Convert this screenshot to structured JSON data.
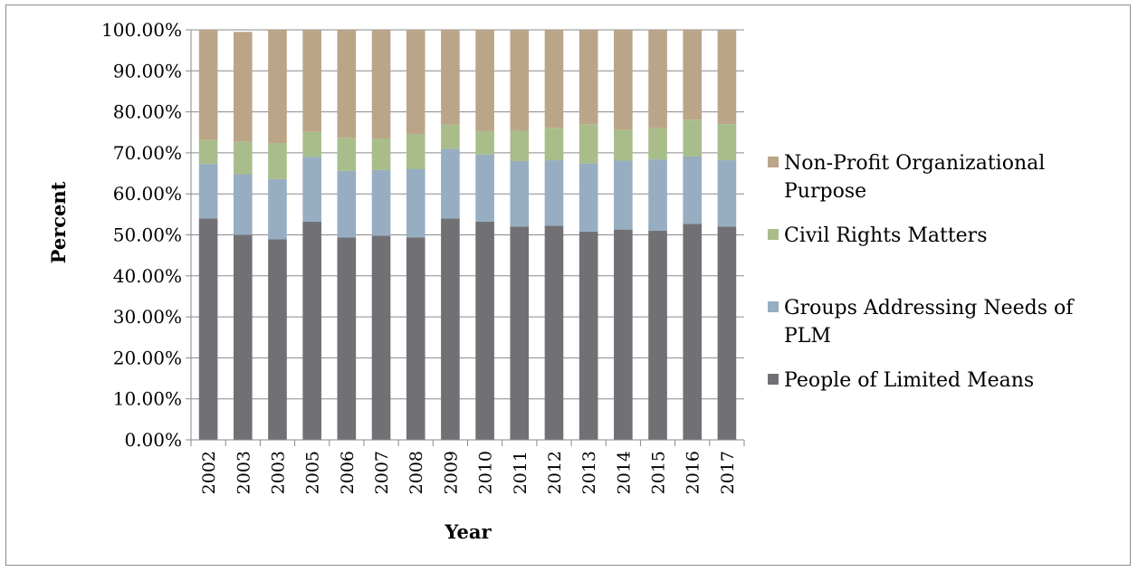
{
  "chart_data": {
    "type": "bar",
    "stacked": true,
    "percent_stacked": true,
    "title": "",
    "xlabel": "Year",
    "ylabel": "Percent",
    "ylim": [
      0,
      100
    ],
    "y_tick_labels": [
      "0.00%",
      "10.00%",
      "20.00%",
      "30.00%",
      "40.00%",
      "50.00%",
      "60.00%",
      "70.00%",
      "80.00%",
      "90.00%",
      "100.00%"
    ],
    "grid": true,
    "legend_position": "right",
    "categories": [
      "2002",
      "2003",
      "2003",
      "2005",
      "2006",
      "2007",
      "2008",
      "2009",
      "2010",
      "2011",
      "2012",
      "2013",
      "2014",
      "2015",
      "2016",
      "2017"
    ],
    "series": [
      {
        "name": "People of Limited Means",
        "color": "#717175",
        "values": [
          54.0,
          50.0,
          48.9,
          53.2,
          49.4,
          49.8,
          49.4,
          54.0,
          53.2,
          52.0,
          52.2,
          50.8,
          51.3,
          51.0,
          52.7,
          52.0
        ]
      },
      {
        "name": "Groups Addressing Needs of PLM",
        "color": "#97adc2",
        "values": [
          13.3,
          14.8,
          14.7,
          15.8,
          16.2,
          16.0,
          16.6,
          17.0,
          16.4,
          16.0,
          16.0,
          16.6,
          16.8,
          17.4,
          16.4,
          16.2
        ]
      },
      {
        "name": "Civil Rights Matters",
        "color": "#a9bd8b",
        "values": [
          5.9,
          7.9,
          8.8,
          6.1,
          8.1,
          7.7,
          8.6,
          5.9,
          5.7,
          7.4,
          7.9,
          9.6,
          7.6,
          7.6,
          9.0,
          8.8
        ]
      },
      {
        "name": "Non-Profit Organizational Purpose",
        "color": "#bba588",
        "values": [
          26.8,
          26.8,
          27.6,
          24.9,
          26.3,
          26.5,
          25.4,
          23.1,
          24.7,
          24.6,
          23.9,
          23.0,
          24.3,
          24.0,
          21.9,
          23.0
        ]
      }
    ],
    "legend_order": [
      3,
      2,
      1,
      0
    ],
    "legend_labels": [
      [
        "Non-Profit Organizational",
        "Purpose"
      ],
      [
        "Civil Rights Matters"
      ],
      [
        "Groups Addressing Needs of",
        "PLM"
      ],
      [
        "People of Limited Means"
      ]
    ]
  }
}
